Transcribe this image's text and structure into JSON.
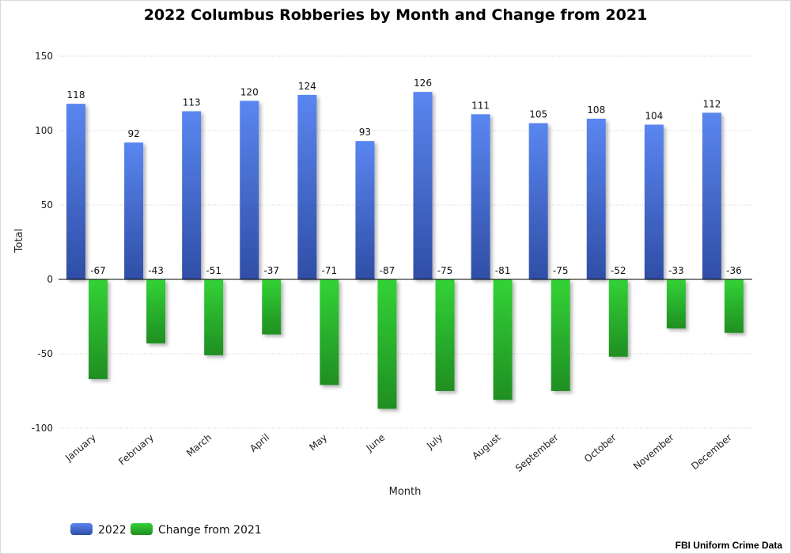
{
  "chart_data": {
    "type": "bar",
    "title": "2022 Columbus Robberies by Month and Change from 2021",
    "xlabel": "Month",
    "ylabel": "Total",
    "ylim": [
      -100,
      150
    ],
    "yticks": [
      -100,
      -50,
      0,
      50,
      100,
      150
    ],
    "grid": true,
    "legend_position": "bottom-left",
    "categories": [
      "January",
      "February",
      "March",
      "April",
      "May",
      "June",
      "July",
      "August",
      "September",
      "October",
      "November",
      "December"
    ],
    "series": [
      {
        "name": "2022",
        "color": "#4a74e3",
        "values": [
          118,
          92,
          113,
          120,
          124,
          93,
          126,
          111,
          105,
          108,
          104,
          112
        ]
      },
      {
        "name": "Change from 2021",
        "color": "#2ecc31",
        "values": [
          -67,
          -43,
          -51,
          -37,
          -71,
          -87,
          -75,
          -81,
          -75,
          -52,
          -33,
          -36
        ]
      }
    ],
    "source": "FBI Uniform Crime Data"
  }
}
